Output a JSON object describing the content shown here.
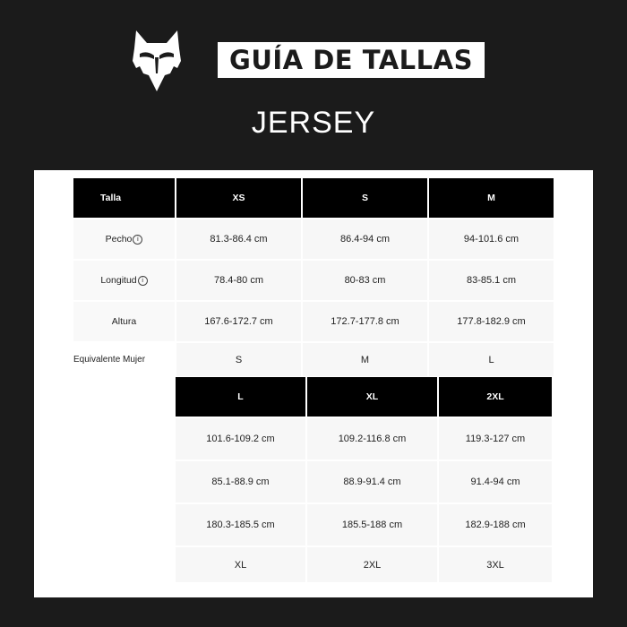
{
  "header": {
    "title": "GUÍA DE TALLAS",
    "subtitle": "JERSEY",
    "logo": "fox-head-logo"
  },
  "table1": {
    "header": [
      "Talla",
      "XS",
      "S",
      "M"
    ],
    "rows": [
      {
        "label": "Pecho",
        "info_icon": true,
        "values": [
          "81.3-86.4 cm",
          "86.4-94 cm",
          "94-101.6 cm"
        ]
      },
      {
        "label": "Longitud",
        "info_icon": true,
        "values": [
          "78.4-80 cm",
          "80-83 cm",
          "83-85.1 cm"
        ]
      },
      {
        "label": "Altura",
        "info_icon": false,
        "values": [
          "167.6-172.7 cm",
          "172.7-177.8 cm",
          "177.8-182.9 cm"
        ]
      },
      {
        "label": "Equivalente Mujer",
        "info_icon": false,
        "values": [
          "S",
          "M",
          "L"
        ]
      }
    ]
  },
  "table2": {
    "header": [
      "L",
      "XL",
      "2XL"
    ],
    "rows": [
      {
        "values": [
          "101.6-109.2 cm",
          "109.2-116.8 cm",
          "119.3-127 cm"
        ]
      },
      {
        "values": [
          "85.1-88.9 cm",
          "88.9-91.4 cm",
          "91.4-94 cm"
        ]
      },
      {
        "values": [
          "180.3-185.5 cm",
          "185.5-188 cm",
          "182.9-188 cm"
        ]
      },
      {
        "values": [
          "XL",
          "2XL",
          "3XL"
        ]
      }
    ]
  },
  "colors": {
    "background": "#1b1b1b",
    "header_cell": "#000000",
    "body_cell": "#f7f7f7"
  }
}
